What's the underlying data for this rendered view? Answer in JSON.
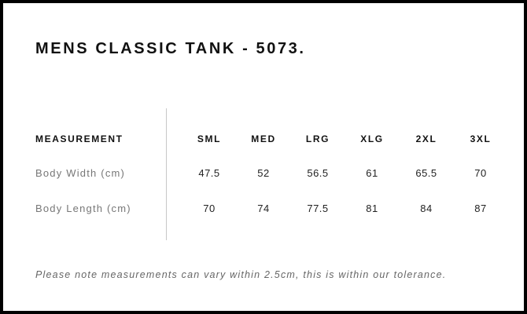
{
  "title": "MENS CLASSIC TANK - 5073.",
  "table": {
    "header": "MEASUREMENT",
    "sizes": [
      "SML",
      "MED",
      "LRG",
      "XLG",
      "2XL",
      "3XL"
    ],
    "rows": [
      {
        "label": "Body Width (cm)",
        "values": [
          "47.5",
          "52",
          "56.5",
          "61",
          "65.5",
          "70"
        ]
      },
      {
        "label": "Body Length (cm)",
        "values": [
          "70",
          "74",
          "77.5",
          "81",
          "84",
          "87"
        ]
      }
    ]
  },
  "note": "Please note measurements can vary within 2.5cm, this is within our tolerance."
}
